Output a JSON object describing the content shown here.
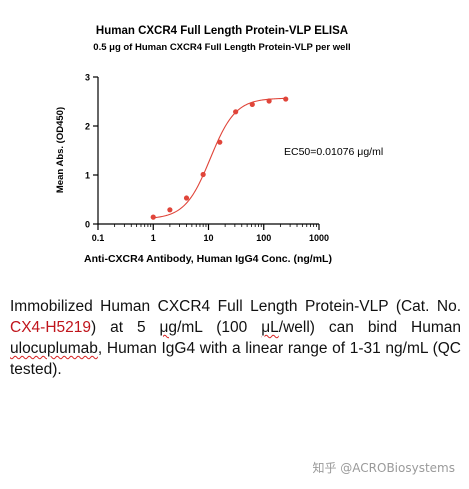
{
  "chart_data": {
    "type": "scatter",
    "title": "Human CXCR4 Full Length Protein-VLP ELISA",
    "subtitle": "0.5 μg of Human CXCR4 Full Length Protein-VLP per well",
    "xlabel": "Anti-CXCR4 Antibody, Human IgG4 Conc. (ng/mL)",
    "ylabel": "Mean Abs. (OD450)",
    "xscale": "log",
    "xlim": [
      0.1,
      1000
    ],
    "ylim": [
      0,
      3
    ],
    "xticks": [
      "0.1",
      "1",
      "10",
      "100",
      "1000"
    ],
    "yticks": [
      "0",
      "1",
      "2",
      "3"
    ],
    "annotation": "EC50=0.01076 μg/ml",
    "grid": false,
    "color": "#e0453a",
    "points": [
      {
        "x": 1,
        "y": 0.14
      },
      {
        "x": 2,
        "y": 0.29
      },
      {
        "x": 4,
        "y": 0.53
      },
      {
        "x": 8,
        "y": 1.01
      },
      {
        "x": 16,
        "y": 1.67
      },
      {
        "x": 31,
        "y": 2.29
      },
      {
        "x": 62,
        "y": 2.44
      },
      {
        "x": 125,
        "y": 2.51
      },
      {
        "x": 250,
        "y": 2.55
      }
    ],
    "fit": {
      "bottom": 0.1,
      "top": 2.57,
      "ec50": 10.76,
      "hill": 1.9
    }
  },
  "caption": {
    "line1": "Immobilized Human CXCR4 Full Length Protein-VLP",
    "line2a": "(Cat. No. ",
    "cat_no": "CX4-H5219",
    "line2b": ") at 5 ",
    "unit_ug": "μg",
    "line2c": "/mL (100 ",
    "unit_ul": "μL",
    "line2d": "/well) can",
    "line3a": "bind Human ",
    "antibody": "ulocuplumab",
    "line3b": ", Human IgG4 with a linear",
    "line4": "range of 1-31 ng/mL (QC tested)."
  },
  "watermark": "知乎 @ACROBiosystems"
}
